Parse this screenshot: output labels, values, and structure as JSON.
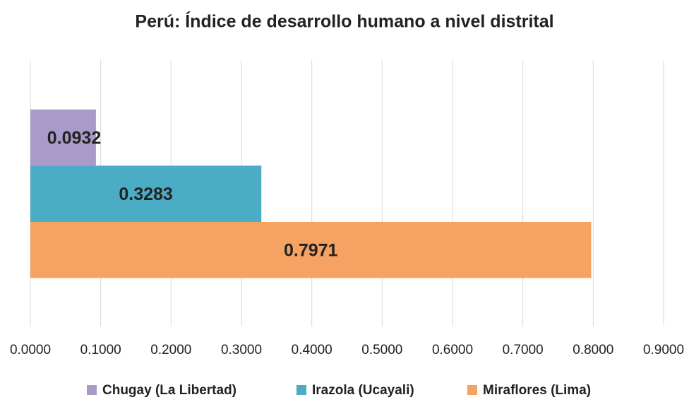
{
  "chart_data": {
    "type": "bar",
    "orientation": "horizontal",
    "title": "Perú: Índice de desarrollo humano a nivel distrital",
    "categories": [
      null
    ],
    "series": [
      {
        "name": "Chugay (La Libertad)",
        "color": "#a99bc8",
        "values": [
          0.0932
        ]
      },
      {
        "name": "Irazola (Ucayali)",
        "color": "#4bacc6",
        "values": [
          0.3283
        ]
      },
      {
        "name": "Miraflores (Lima)",
        "color": "#f5a263",
        "values": [
          0.7971
        ]
      }
    ],
    "xlim": [
      0,
      0.9
    ],
    "xticks": [
      {
        "value": 0,
        "label": "0.0000"
      },
      {
        "value": 0.1,
        "label": "0.1000"
      },
      {
        "value": 0.2,
        "label": "0.2000"
      },
      {
        "value": 0.3,
        "label": "0.3000"
      },
      {
        "value": 0.4,
        "label": "0.4000"
      },
      {
        "value": 0.5,
        "label": "0.5000"
      },
      {
        "value": 0.6,
        "label": "0.6000"
      },
      {
        "value": 0.7,
        "label": "0.7000"
      },
      {
        "value": 0.8,
        "label": "0.8000"
      },
      {
        "value": 0.9,
        "label": "0.9000"
      }
    ],
    "grid": true,
    "legend": "bottom"
  }
}
